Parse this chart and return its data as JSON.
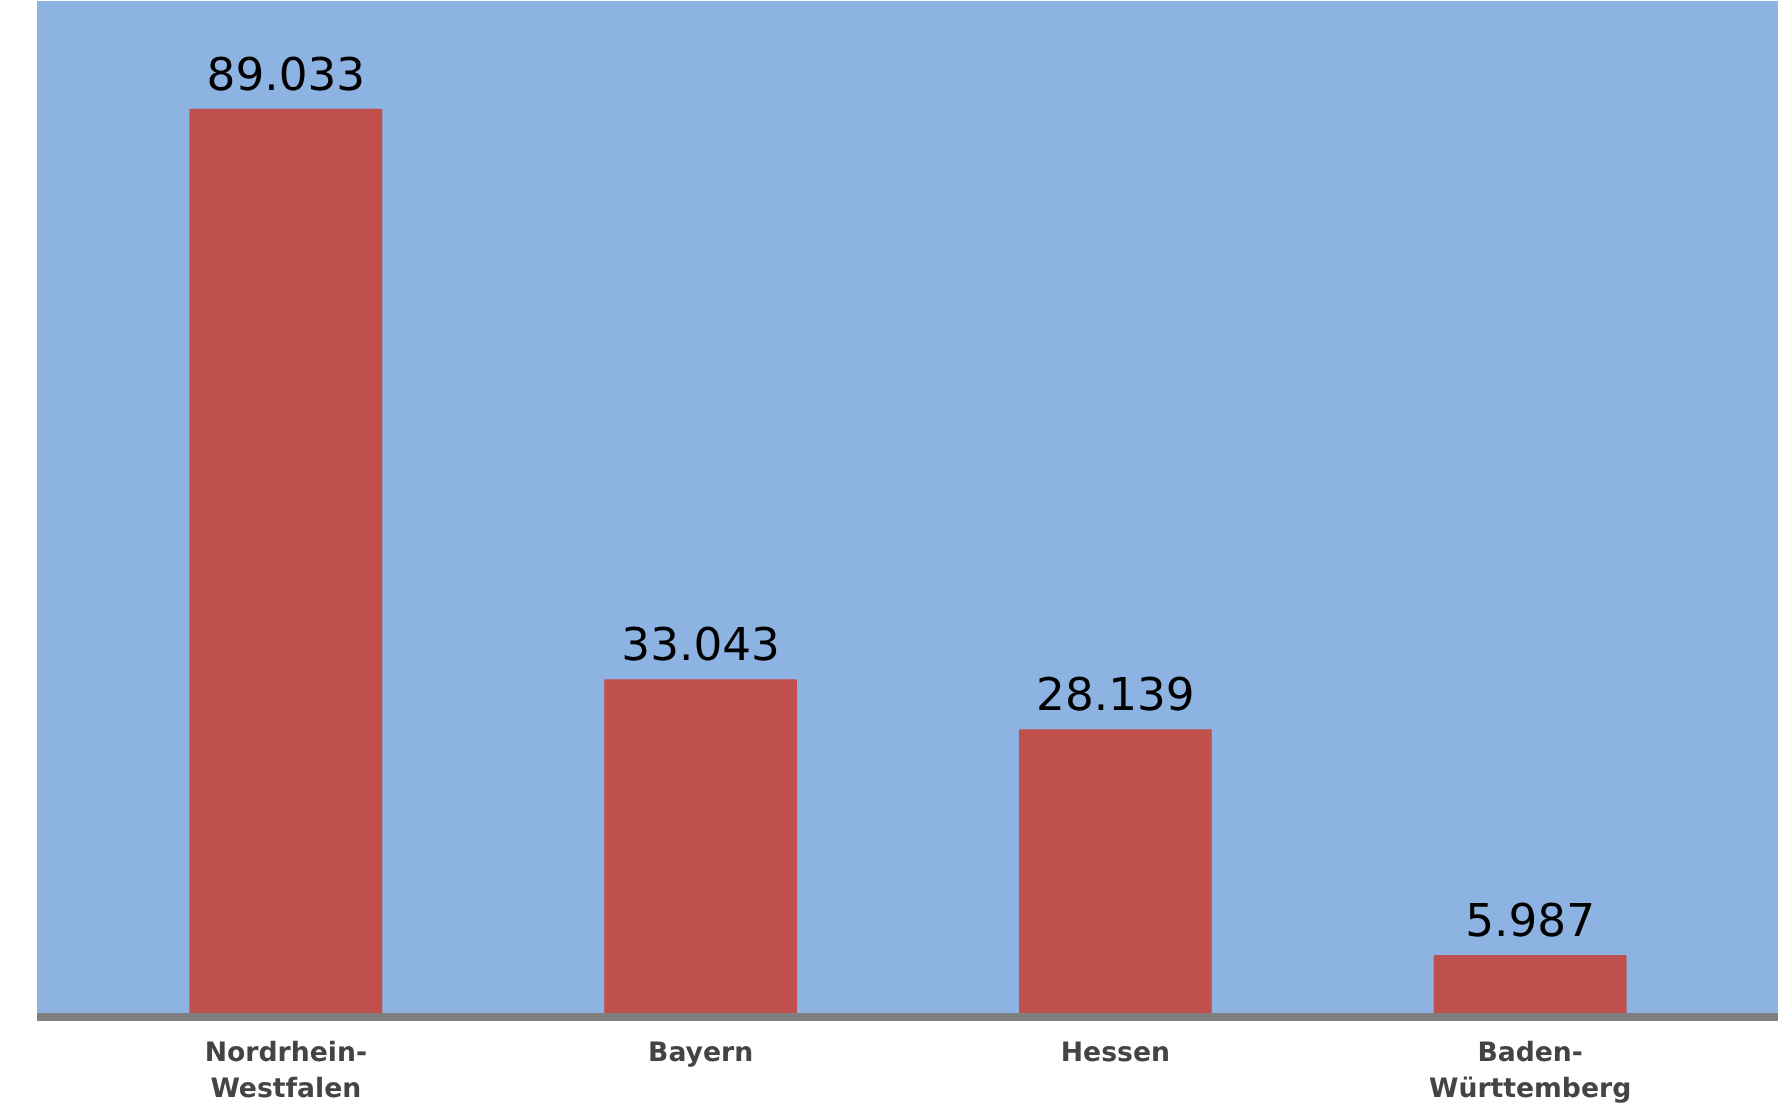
{
  "chart_data": {
    "type": "bar",
    "categories": [
      "Nordrhein-Westfalen",
      "Bayern",
      "Hessen",
      "Baden-Württemberg"
    ],
    "values": [
      89033,
      33043,
      28139,
      5987
    ],
    "value_labels": [
      "89.033",
      "33.043",
      "28.139",
      "5.987"
    ],
    "color": "#c0504d",
    "grid": false
  }
}
